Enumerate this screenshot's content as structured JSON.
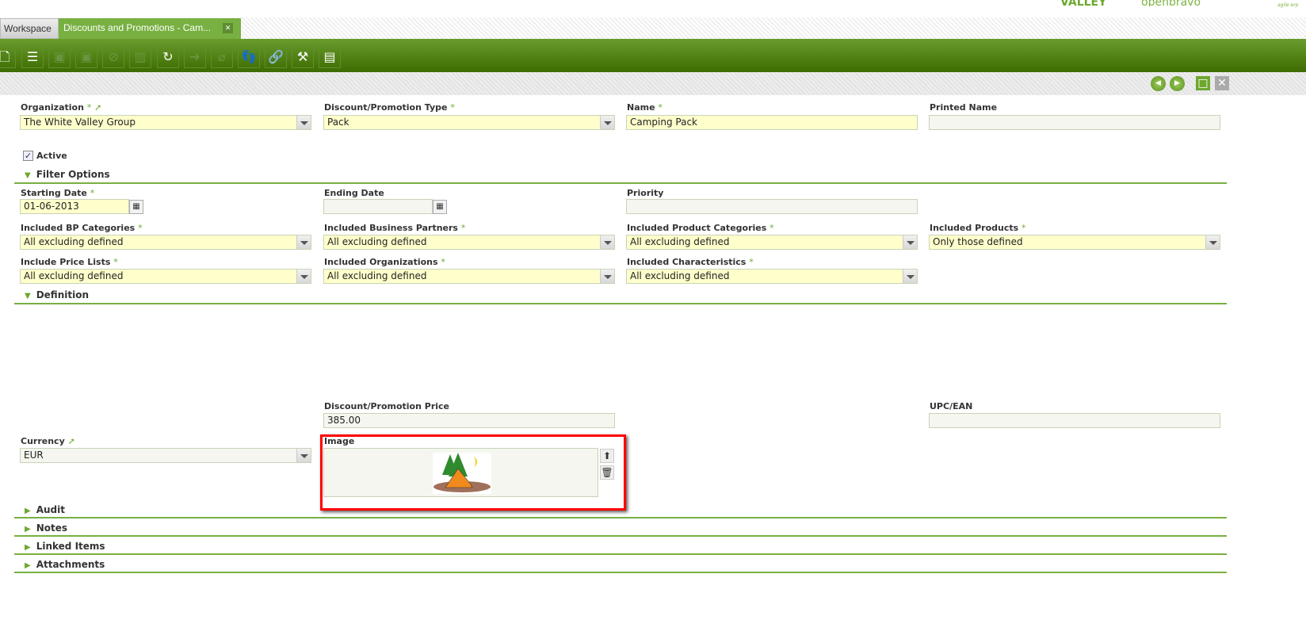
{
  "branding": {
    "logo_left": "VALLEY",
    "logo_right": "openbravo",
    "logo_tagline": "agile erp"
  },
  "tabs": [
    {
      "label": "Workspace"
    },
    {
      "label": "Discounts and Promotions - Cam..."
    }
  ],
  "toolbar": {
    "icons": [
      "new-document-icon",
      "new-record-icon",
      "save-icon",
      "save-close-icon",
      "undo-icon",
      "delete-icon",
      "refresh-icon",
      "export-icon",
      "attachment-icon",
      "audit-trail-icon",
      "link-icon",
      "customize-icon",
      "grid-view-icon"
    ]
  },
  "form": {
    "organization": {
      "label": "Organization",
      "required": "*",
      "value": "The White Valley Group"
    },
    "type": {
      "label": "Discount/Promotion Type",
      "required": "*",
      "value": "Pack"
    },
    "name": {
      "label": "Name",
      "required": "*",
      "value": "Camping Pack"
    },
    "printed_name": {
      "label": "Printed Name",
      "value": ""
    },
    "active": {
      "label": "Active",
      "checked": true
    },
    "filter_options": "Filter Options",
    "starting_date": {
      "label": "Starting Date",
      "required": "*",
      "value": "01-06-2013"
    },
    "ending_date": {
      "label": "Ending Date",
      "value": ""
    },
    "priority": {
      "label": "Priority",
      "value": ""
    },
    "bp_categories": {
      "label": "Included BP Categories",
      "required": "*",
      "value": "All excluding defined"
    },
    "business_partners": {
      "label": "Included Business Partners",
      "required": "*",
      "value": "All excluding defined"
    },
    "product_categories": {
      "label": "Included Product Categories",
      "required": "*",
      "value": "All excluding defined"
    },
    "products": {
      "label": "Included Products",
      "required": "*",
      "value": "Only those defined"
    },
    "price_lists": {
      "label": "Include Price Lists",
      "required": "*",
      "value": "All excluding defined"
    },
    "organizations": {
      "label": "Included Organizations",
      "required": "*",
      "value": "All excluding defined"
    },
    "characteristics": {
      "label": "Included Characteristics",
      "required": "*",
      "value": "All excluding defined"
    },
    "definition": "Definition",
    "price": {
      "label": "Discount/Promotion Price",
      "value": "385.00"
    },
    "upc": {
      "label": "UPC/EAN",
      "value": ""
    },
    "currency": {
      "label": "Currency",
      "value": "EUR"
    },
    "image": {
      "label": "Image"
    }
  },
  "sections": [
    "Audit",
    "Notes",
    "Linked Items",
    "Attachments"
  ],
  "colors": {
    "accent": "#78b041",
    "required_bg": "#ffffcc",
    "highlight": "#ff0000"
  }
}
